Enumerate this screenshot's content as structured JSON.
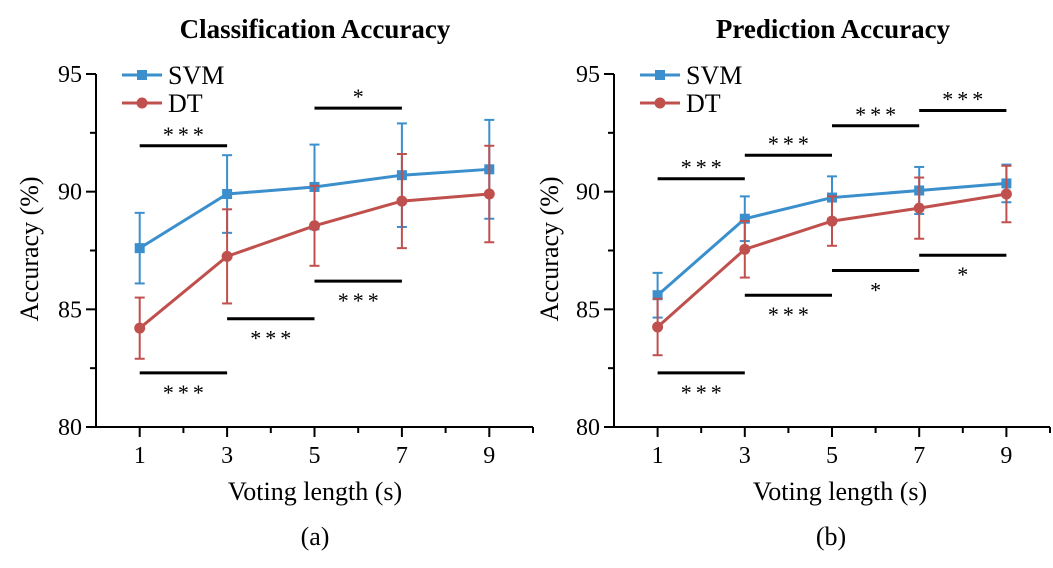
{
  "colors": {
    "SVM": "#3a8fcc",
    "DT": "#c0504d",
    "axis": "#000000"
  },
  "chart_data": [
    {
      "type": "line",
      "title": "Classification Accuracy",
      "panel_label": "(a)",
      "xlabel": "Voting length (s)",
      "ylabel": "Accuracy (%)",
      "x": [
        1,
        3,
        5,
        7,
        9
      ],
      "xlim": [
        0,
        10
      ],
      "ylim": [
        80,
        95
      ],
      "yticks": [
        80,
        85,
        90,
        95
      ],
      "grid": false,
      "legend": "top-left",
      "series": [
        {
          "name": "SVM",
          "marker": "square",
          "values": [
            87.6,
            89.9,
            90.2,
            90.7,
            90.95
          ],
          "err": [
            1.5,
            1.65,
            1.8,
            2.2,
            2.1
          ]
        },
        {
          "name": "DT",
          "marker": "circle",
          "values": [
            84.2,
            87.25,
            88.55,
            89.6,
            89.9
          ],
          "err": [
            1.3,
            2.0,
            1.7,
            2.0,
            2.05
          ]
        }
      ],
      "significance": [
        {
          "x": [
            1,
            3
          ],
          "y": 91.95,
          "label": "***",
          "label_pos": "above"
        },
        {
          "x": [
            5,
            7
          ],
          "y": 93.55,
          "label": "*",
          "label_pos": "above"
        },
        {
          "x": [
            3,
            5
          ],
          "y": 84.6,
          "label": "***",
          "label_pos": "below"
        },
        {
          "x": [
            5,
            7
          ],
          "y": 86.2,
          "label": "***",
          "label_pos": "below"
        },
        {
          "x": [
            1,
            3
          ],
          "y": 82.3,
          "label": "***",
          "label_pos": "below"
        }
      ]
    },
    {
      "type": "line",
      "title": "Prediction Accuracy",
      "panel_label": "(b)",
      "xlabel": "Voting length (s)",
      "ylabel": "Accuracy (%)",
      "x": [
        1,
        3,
        5,
        7,
        9
      ],
      "xlim": [
        0,
        10
      ],
      "ylim": [
        80,
        95
      ],
      "yticks": [
        80,
        85,
        90,
        95
      ],
      "grid": false,
      "legend": "top-left",
      "series": [
        {
          "name": "SVM",
          "marker": "square",
          "values": [
            85.6,
            88.85,
            89.75,
            90.05,
            90.35
          ],
          "err": [
            0.95,
            0.95,
            0.9,
            1.0,
            0.8
          ]
        },
        {
          "name": "DT",
          "marker": "circle",
          "values": [
            84.25,
            87.55,
            88.75,
            89.3,
            89.9
          ],
          "err": [
            1.2,
            1.2,
            1.05,
            1.3,
            1.2
          ]
        }
      ],
      "significance": [
        {
          "x": [
            1,
            3
          ],
          "y": 90.55,
          "label": "***",
          "label_pos": "above"
        },
        {
          "x": [
            3,
            5
          ],
          "y": 91.55,
          "label": "***",
          "label_pos": "above"
        },
        {
          "x": [
            5,
            7
          ],
          "y": 92.8,
          "label": "***",
          "label_pos": "above"
        },
        {
          "x": [
            7,
            9
          ],
          "y": 93.45,
          "label": "***",
          "label_pos": "above"
        },
        {
          "x": [
            1,
            3
          ],
          "y": 82.3,
          "label": "***",
          "label_pos": "below"
        },
        {
          "x": [
            3,
            5
          ],
          "y": 85.6,
          "label": "***",
          "label_pos": "below"
        },
        {
          "x": [
            5,
            7
          ],
          "y": 86.65,
          "label": "*",
          "label_pos": "below"
        },
        {
          "x": [
            7,
            9
          ],
          "y": 87.3,
          "label": "*",
          "label_pos": "below"
        }
      ]
    }
  ]
}
